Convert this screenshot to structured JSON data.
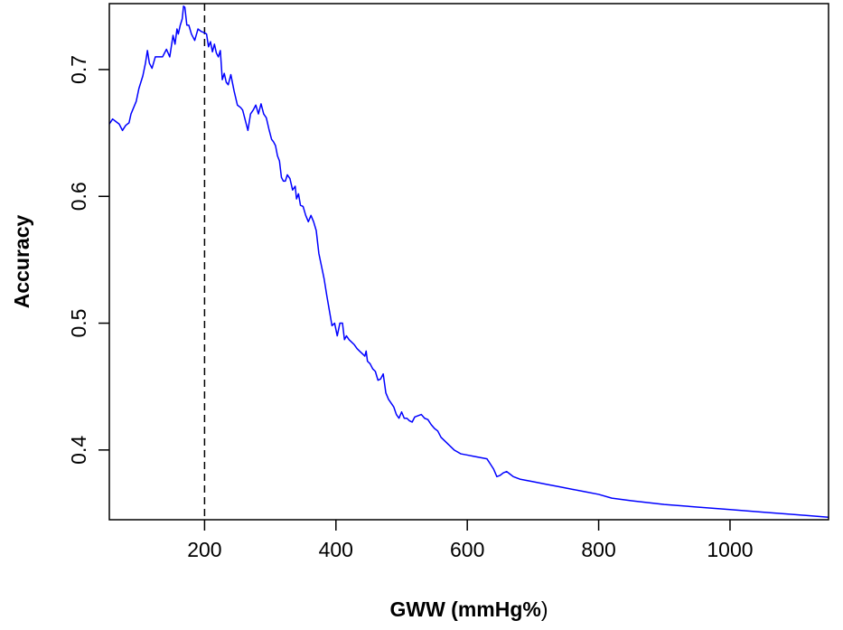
{
  "chart_data": {
    "type": "line",
    "title": "",
    "xlabel_bold": "GWW (mmHg%",
    "xlabel_plain": ")",
    "ylabel": "Accuracy",
    "xlim": [
      55,
      1150
    ],
    "ylim": [
      0.345,
      0.752
    ],
    "x_ticks": [
      200,
      400,
      600,
      800,
      1000
    ],
    "x_tick_labels": [
      "200",
      "400",
      "600",
      "800",
      "1000"
    ],
    "y_ticks": [
      0.4,
      0.5,
      0.6,
      0.7
    ],
    "y_tick_labels": [
      "0.4",
      "0.5",
      "0.6",
      "0.7"
    ],
    "reference_line_x": 200,
    "line_color": "#0000ff",
    "reference_line_color": "#000000",
    "grid": false,
    "series": [
      {
        "x": [
          55,
          60,
          65,
          70,
          75,
          80,
          85,
          88,
          92,
          96,
          100,
          103,
          106,
          110,
          113,
          116,
          120,
          125,
          130,
          136,
          142,
          147,
          152,
          155,
          158,
          160,
          163,
          166,
          168,
          170,
          173,
          176,
          180,
          185,
          190,
          195,
          200,
          203,
          206,
          209,
          212,
          215,
          218,
          221,
          224,
          227,
          230,
          233,
          236,
          240,
          245,
          250,
          255,
          258,
          262,
          266,
          270,
          274,
          278,
          282,
          286,
          290,
          294,
          298,
          302,
          305,
          308,
          311,
          314,
          317,
          320,
          323,
          326,
          330,
          334,
          338,
          340,
          343,
          346,
          350,
          354,
          358,
          362,
          366,
          370,
          374,
          378,
          382,
          386,
          390,
          394,
          398,
          402,
          406,
          410,
          413,
          416,
          420,
          424,
          428,
          432,
          436,
          440,
          444,
          446,
          448,
          452,
          456,
          460,
          464,
          468,
          472,
          476,
          480,
          484,
          488,
          492,
          496,
          500,
          504,
          508,
          512,
          516,
          520,
          525,
          530,
          535,
          540,
          545,
          550,
          555,
          560,
          570,
          580,
          590,
          600,
          610,
          620,
          630,
          635,
          640,
          645,
          650,
          655,
          660,
          665,
          670,
          680,
          690,
          700,
          720,
          740,
          760,
          780,
          800,
          820,
          850,
          900,
          950,
          1000,
          1050,
          1100,
          1150
        ],
        "y": [
          0.657,
          0.661,
          0.659,
          0.657,
          0.652,
          0.656,
          0.658,
          0.665,
          0.67,
          0.675,
          0.685,
          0.69,
          0.695,
          0.705,
          0.715,
          0.705,
          0.701,
          0.71,
          0.71,
          0.71,
          0.716,
          0.71,
          0.727,
          0.72,
          0.732,
          0.728,
          0.735,
          0.74,
          0.75,
          0.749,
          0.735,
          0.735,
          0.728,
          0.723,
          0.732,
          0.73,
          0.729,
          0.728,
          0.718,
          0.722,
          0.714,
          0.72,
          0.713,
          0.71,
          0.715,
          0.692,
          0.697,
          0.69,
          0.688,
          0.696,
          0.683,
          0.672,
          0.67,
          0.668,
          0.66,
          0.652,
          0.665,
          0.668,
          0.672,
          0.665,
          0.673,
          0.665,
          0.662,
          0.653,
          0.645,
          0.643,
          0.64,
          0.632,
          0.628,
          0.615,
          0.612,
          0.612,
          0.617,
          0.614,
          0.605,
          0.608,
          0.598,
          0.602,
          0.593,
          0.592,
          0.585,
          0.58,
          0.585,
          0.58,
          0.573,
          0.555,
          0.545,
          0.535,
          0.522,
          0.51,
          0.498,
          0.5,
          0.49,
          0.5,
          0.5,
          0.487,
          0.49,
          0.487,
          0.485,
          0.483,
          0.48,
          0.478,
          0.476,
          0.474,
          0.478,
          0.47,
          0.468,
          0.464,
          0.462,
          0.455,
          0.456,
          0.46,
          0.445,
          0.44,
          0.437,
          0.434,
          0.428,
          0.425,
          0.43,
          0.425,
          0.425,
          0.423,
          0.422,
          0.426,
          0.427,
          0.428,
          0.425,
          0.424,
          0.42,
          0.417,
          0.415,
          0.41,
          0.405,
          0.4,
          0.397,
          0.396,
          0.395,
          0.394,
          0.393,
          0.389,
          0.385,
          0.379,
          0.38,
          0.382,
          0.383,
          0.381,
          0.379,
          0.377,
          0.376,
          0.375,
          0.373,
          0.371,
          0.369,
          0.367,
          0.365,
          0.362,
          0.36,
          0.357,
          0.355,
          0.353,
          0.351,
          0.349,
          0.347
        ]
      }
    ]
  }
}
